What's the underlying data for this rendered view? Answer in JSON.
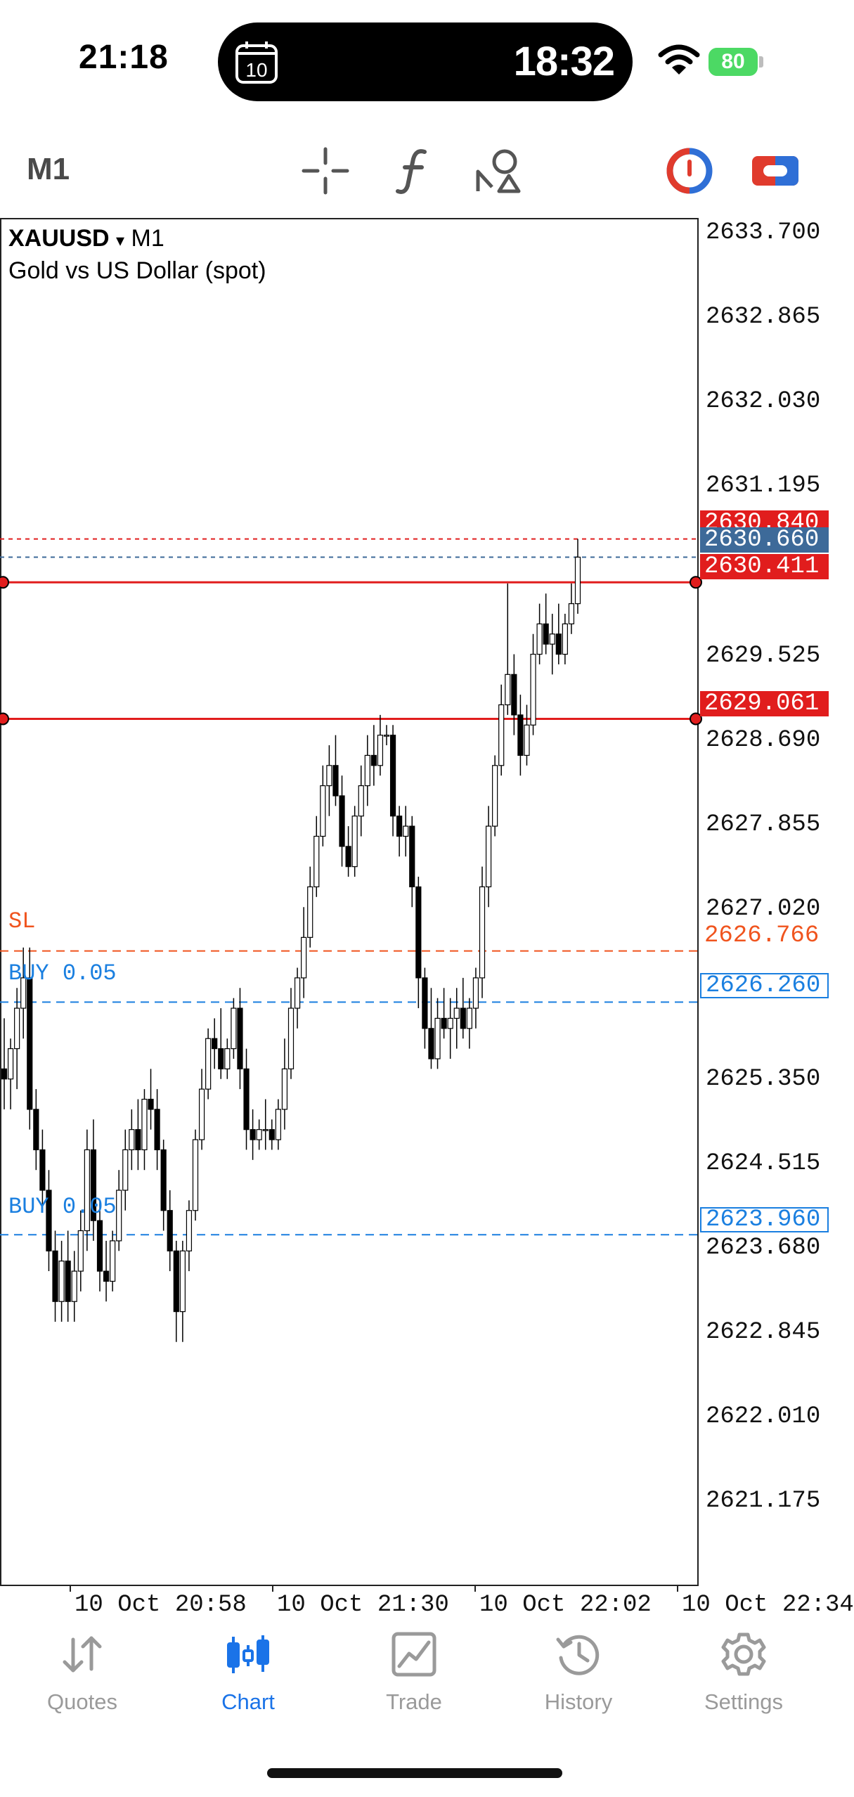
{
  "status_bar": {
    "time": "21:18",
    "island_calendar_day": "10",
    "island_timer": "18:32",
    "battery": "80"
  },
  "toolbar": {
    "timeframe": "M1",
    "tools": [
      "crosshair-icon",
      "indicator-icon",
      "objects-icon",
      "trade-panel-icon",
      "one-click-icon"
    ]
  },
  "chart": {
    "symbol": "XAUUSD",
    "dropdown_glyph": "▾",
    "timeframe": "M1",
    "description": "Gold vs US Dollar (spot)",
    "price_ticks": [
      "2633.700",
      "2632.865",
      "2632.030",
      "2631.195",
      "2629.525",
      "2628.690",
      "2627.855",
      "2627.020",
      "2625.350",
      "2624.515",
      "2623.680",
      "2622.845",
      "2622.010",
      "2621.175"
    ],
    "time_ticks": [
      "10 Oct 20:58",
      "10 Oct 21:30",
      "10 Oct 22:02",
      "10 Oct 22:34"
    ],
    "tags": {
      "ask": "2630.840",
      "bid": "2630.660",
      "alert_upper": "2630.411",
      "alert_lower": "2629.061",
      "sl": "2626.766",
      "buy1": "2626.260",
      "buy2": "2623.960"
    },
    "orders": {
      "sl_label": "SL",
      "buy1_label": "BUY 0.05",
      "buy2_label": "BUY 0.05"
    },
    "colors": {
      "ask": "#e11d1d",
      "bid": "#3d6a99",
      "alert": "#e11d1d",
      "sl": "#f0541e",
      "buy": "#1a7fe0"
    }
  },
  "chart_data": {
    "type": "candlestick",
    "symbol": "XAUUSD",
    "timeframe": "M1",
    "y_range": [
      2620.5,
      2634.0
    ],
    "candles": [
      [
        2625.6,
        2626.1,
        2625.2,
        2625.5
      ],
      [
        2625.5,
        2625.9,
        2625.2,
        2625.8
      ],
      [
        2625.8,
        2626.4,
        2625.4,
        2626.2
      ],
      [
        2626.2,
        2626.8,
        2625.9,
        2626.5
      ],
      [
        2626.5,
        2626.8,
        2625.0,
        2625.2
      ],
      [
        2625.2,
        2625.4,
        2624.6,
        2624.8
      ],
      [
        2624.8,
        2625.0,
        2624.2,
        2624.4
      ],
      [
        2624.4,
        2624.6,
        2623.6,
        2623.8
      ],
      [
        2623.8,
        2624.0,
        2623.1,
        2623.3
      ],
      [
        2623.3,
        2623.9,
        2623.1,
        2623.7
      ],
      [
        2623.7,
        2624.0,
        2623.1,
        2623.3
      ],
      [
        2623.3,
        2623.8,
        2623.1,
        2623.6
      ],
      [
        2623.6,
        2624.2,
        2623.4,
        2624.0
      ],
      [
        2624.0,
        2625.0,
        2623.8,
        2624.8
      ],
      [
        2624.8,
        2625.1,
        2623.9,
        2624.1
      ],
      [
        2624.1,
        2624.3,
        2623.4,
        2623.6
      ],
      [
        2623.6,
        2623.9,
        2623.3,
        2623.5
      ],
      [
        2623.5,
        2624.0,
        2623.4,
        2623.9
      ],
      [
        2623.9,
        2624.6,
        2623.8,
        2624.4
      ],
      [
        2624.4,
        2625.0,
        2624.2,
        2624.8
      ],
      [
        2624.8,
        2625.2,
        2624.6,
        2625.0
      ],
      [
        2625.0,
        2625.3,
        2624.6,
        2624.8
      ],
      [
        2624.8,
        2625.4,
        2624.6,
        2625.3
      ],
      [
        2625.3,
        2625.6,
        2625.0,
        2625.2
      ],
      [
        2625.2,
        2625.4,
        2624.6,
        2624.8
      ],
      [
        2624.8,
        2624.9,
        2624.0,
        2624.2
      ],
      [
        2624.2,
        2624.4,
        2623.6,
        2623.8
      ],
      [
        2623.8,
        2623.9,
        2622.9,
        2623.2
      ],
      [
        2623.2,
        2623.9,
        2622.9,
        2623.8
      ],
      [
        2623.8,
        2624.3,
        2623.6,
        2624.2
      ],
      [
        2624.2,
        2625.0,
        2624.1,
        2624.9
      ],
      [
        2624.9,
        2625.6,
        2624.8,
        2625.4
      ],
      [
        2625.4,
        2626.0,
        2625.3,
        2625.9
      ],
      [
        2625.9,
        2626.1,
        2625.6,
        2625.8
      ],
      [
        2625.8,
        2626.2,
        2625.5,
        2625.6
      ],
      [
        2625.6,
        2625.9,
        2625.5,
        2625.8
      ],
      [
        2625.8,
        2626.3,
        2625.7,
        2626.2
      ],
      [
        2626.2,
        2626.4,
        2625.4,
        2625.6
      ],
      [
        2625.6,
        2625.8,
        2624.8,
        2625.0
      ],
      [
        2625.0,
        2625.2,
        2624.7,
        2624.9
      ],
      [
        2624.9,
        2625.1,
        2624.8,
        2625.0
      ],
      [
        2625.0,
        2625.3,
        2624.8,
        2625.0
      ],
      [
        2625.0,
        2625.1,
        2624.8,
        2624.9
      ],
      [
        2624.9,
        2625.3,
        2624.8,
        2625.2
      ],
      [
        2625.2,
        2625.9,
        2625.0,
        2625.6
      ],
      [
        2625.6,
        2626.4,
        2625.5,
        2626.2
      ],
      [
        2626.2,
        2626.6,
        2626.0,
        2626.5
      ],
      [
        2626.5,
        2627.2,
        2626.3,
        2626.9
      ],
      [
        2626.9,
        2627.6,
        2626.8,
        2627.4
      ],
      [
        2627.4,
        2628.1,
        2627.3,
        2627.9
      ],
      [
        2627.9,
        2628.6,
        2627.8,
        2628.4
      ],
      [
        2628.4,
        2628.8,
        2628.1,
        2628.6
      ],
      [
        2628.6,
        2628.9,
        2628.2,
        2628.3
      ],
      [
        2628.3,
        2628.5,
        2627.6,
        2627.8
      ],
      [
        2627.8,
        2628.0,
        2627.5,
        2627.6
      ],
      [
        2627.6,
        2628.2,
        2627.5,
        2628.1
      ],
      [
        2628.1,
        2628.6,
        2627.9,
        2628.4
      ],
      [
        2628.4,
        2628.9,
        2628.2,
        2628.7
      ],
      [
        2628.7,
        2629.0,
        2628.4,
        2628.6
      ],
      [
        2628.6,
        2629.1,
        2628.5,
        2628.9
      ],
      [
        2628.9,
        2629.0,
        2628.8,
        2628.9
      ],
      [
        2628.9,
        2629.0,
        2627.9,
        2628.1
      ],
      [
        2628.1,
        2628.2,
        2627.7,
        2627.9
      ],
      [
        2627.9,
        2628.2,
        2627.7,
        2628.0
      ],
      [
        2628.0,
        2628.1,
        2627.2,
        2627.4
      ],
      [
        2627.4,
        2627.5,
        2626.2,
        2626.5
      ],
      [
        2626.5,
        2626.6,
        2625.8,
        2626.0
      ],
      [
        2626.0,
        2626.4,
        2625.6,
        2625.7
      ],
      [
        2625.7,
        2626.3,
        2625.6,
        2626.1
      ],
      [
        2626.1,
        2626.4,
        2625.9,
        2626.0
      ],
      [
        2626.0,
        2626.3,
        2625.7,
        2626.1
      ],
      [
        2626.1,
        2626.4,
        2625.8,
        2626.2
      ],
      [
        2626.2,
        2626.5,
        2625.9,
        2626.0
      ],
      [
        2626.0,
        2626.3,
        2625.8,
        2626.2
      ],
      [
        2626.2,
        2626.6,
        2626.0,
        2626.5
      ],
      [
        2626.5,
        2627.6,
        2626.3,
        2627.4
      ],
      [
        2627.4,
        2628.2,
        2627.2,
        2628.0
      ],
      [
        2628.0,
        2628.7,
        2627.9,
        2628.6
      ],
      [
        2628.6,
        2629.4,
        2628.5,
        2629.2
      ],
      [
        2629.2,
        2630.4,
        2629.1,
        2629.5
      ],
      [
        2629.5,
        2629.7,
        2628.9,
        2629.1
      ],
      [
        2629.1,
        2629.3,
        2628.5,
        2628.7
      ],
      [
        2628.7,
        2629.2,
        2628.6,
        2629.0
      ],
      [
        2629.0,
        2629.9,
        2628.9,
        2629.7
      ],
      [
        2629.7,
        2630.2,
        2629.6,
        2630.0
      ],
      [
        2630.0,
        2630.3,
        2629.7,
        2629.8
      ],
      [
        2629.8,
        2630.1,
        2629.5,
        2629.9
      ],
      [
        2629.9,
        2630.2,
        2629.6,
        2629.7
      ],
      [
        2629.7,
        2630.1,
        2629.6,
        2630.0
      ],
      [
        2630.0,
        2630.4,
        2629.9,
        2630.2
      ],
      [
        2630.2,
        2630.84,
        2630.1,
        2630.66
      ]
    ]
  },
  "tab_bar": {
    "tabs": [
      {
        "label": "Quotes",
        "icon": "quotes-icon"
      },
      {
        "label": "Chart",
        "icon": "chart-icon",
        "active": true
      },
      {
        "label": "Trade",
        "icon": "trade-icon"
      },
      {
        "label": "History",
        "icon": "history-icon"
      },
      {
        "label": "Settings",
        "icon": "settings-icon"
      }
    ]
  }
}
